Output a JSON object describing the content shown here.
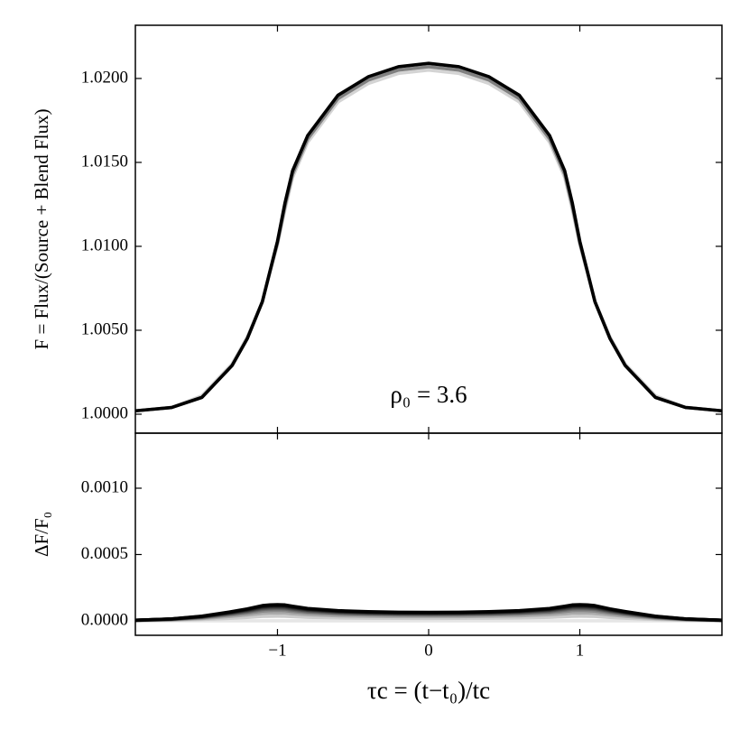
{
  "chart_data": [
    {
      "type": "line",
      "ylabel": "F = Flux/(Source + Blend Flux)",
      "annotation": "ρ₀ = 3.6",
      "x": [
        -1.94,
        -1.7,
        -1.5,
        -1.3,
        -1.2,
        -1.1,
        -1.05,
        -1,
        -0.95,
        -0.9,
        -0.8,
        -0.6,
        -0.4,
        -0.2,
        0,
        0.2,
        0.4,
        0.6,
        0.8,
        0.9,
        0.95,
        1,
        1.05,
        1.1,
        1.2,
        1.3,
        1.5,
        1.7,
        1.94
      ],
      "xlim": [
        -1.94,
        1.94
      ],
      "ylim": [
        0.99887,
        1.02317
      ],
      "xticks": [
        {
          "value": -1,
          "label": "−1"
        },
        0,
        1
      ],
      "yticks": [
        {
          "value": 1,
          "label": "1.0000"
        },
        {
          "value": 1.005,
          "label": "1.0050"
        },
        {
          "value": 1.01,
          "label": "1.0100"
        },
        {
          "value": 1.015,
          "label": "1.0150"
        },
        {
          "value": 1.02,
          "label": "1.0200"
        }
      ],
      "series": [
        {
          "color": "#d4d4d4",
          "values": [
            1.0002,
            1.0004,
            1.0011,
            1.003,
            1.0046,
            1.0067,
            1.0084,
            1.0101,
            1.0122,
            1.0141,
            1.0162,
            1.0186,
            1.0197,
            1.0203,
            1.0205,
            1.0203,
            1.0197,
            1.0186,
            1.0162,
            1.0141,
            1.0122,
            1.0101,
            1.0084,
            1.0067,
            1.0046,
            1.003,
            1.0011,
            1.0004,
            1.0002
          ]
        },
        {
          "color": "#808080",
          "values": [
            1.0002,
            1.0004,
            1.001,
            1.0029,
            1.0045,
            1.0067,
            1.0085,
            1.0102,
            1.0124,
            1.0143,
            1.0164,
            1.0188,
            1.0199,
            1.0205,
            1.0207,
            1.0205,
            1.0199,
            1.0188,
            1.0164,
            1.0143,
            1.0124,
            1.0102,
            1.0085,
            1.0067,
            1.0045,
            1.0029,
            1.001,
            1.0004,
            1.0002
          ]
        },
        {
          "color": "#000000",
          "values": [
            1.0002,
            1.0004,
            1.001,
            1.0029,
            1.0045,
            1.0067,
            1.0085,
            1.0103,
            1.0126,
            1.0145,
            1.0166,
            1.019,
            1.0201,
            1.0207,
            1.0209,
            1.0207,
            1.0201,
            1.019,
            1.0166,
            1.0145,
            1.0126,
            1.0103,
            1.0085,
            1.0067,
            1.0045,
            1.0029,
            1.001,
            1.0004,
            1.0002
          ]
        }
      ]
    },
    {
      "type": "line",
      "ylabel": "ΔF/F₀",
      "xlabel": "τc = (t−t₀)/tc",
      "x": [
        -1.94,
        -1.7,
        -1.5,
        -1.3,
        -1.2,
        -1.1,
        -1.05,
        -1,
        -0.95,
        -0.9,
        -0.8,
        -0.6,
        -0.4,
        -0.2,
        0,
        0.2,
        0.4,
        0.6,
        0.8,
        0.9,
        0.95,
        1,
        1.05,
        1.1,
        1.2,
        1.3,
        1.5,
        1.7,
        1.94
      ],
      "xlim": [
        -1.94,
        1.94
      ],
      "ylim": [
        -0.000109,
        0.001415
      ],
      "xticks": [
        {
          "value": -1,
          "label": "−1"
        },
        0,
        1
      ],
      "yticks": [
        {
          "value": 0,
          "label": "0.0000"
        },
        {
          "value": 0.0005,
          "label": "0.0005"
        },
        {
          "value": 0.001,
          "label": "0.0010"
        }
      ],
      "series": [
        {
          "color": "#e6e6e6",
          "values": [
            0,
            0,
            0,
            0,
            0,
            0,
            0,
            0,
            0,
            0,
            0,
            0,
            0,
            0,
            0,
            0,
            0,
            0,
            0,
            0,
            0,
            0,
            0,
            0,
            0,
            0,
            0,
            0,
            0
          ]
        },
        {
          "color": "#cccccc",
          "values": [
            1.4e-06,
            4.3e-06,
            1e-05,
            2e-05,
            2.6e-05,
            3.3e-05,
            3.44e-05,
            3.5e-05,
            3.44e-05,
            3.16e-05,
            2.67e-05,
            2.21e-05,
            1.98e-05,
            1.87e-05,
            1.84e-05,
            1.87e-05,
            1.98e-05,
            2.21e-05,
            2.67e-05,
            3.16e-05,
            3.44e-05,
            3.5e-05,
            3.44e-05,
            3.3e-05,
            2.6e-05,
            2e-05,
            1e-05,
            4.3e-06,
            1.4e-06
          ]
        },
        {
          "color": "#aaaaaa",
          "values": [
            2.5e-06,
            7.4e-06,
            1.72e-05,
            3.44e-05,
            4.43e-05,
            5.66e-05,
            5.9e-05,
            6e-05,
            5.9e-05,
            5.41e-05,
            4.58e-05,
            3.79e-05,
            3.39e-05,
            3.2e-05,
            3.15e-05,
            3.2e-05,
            3.39e-05,
            3.79e-05,
            4.58e-05,
            5.41e-05,
            5.9e-05,
            6e-05,
            5.9e-05,
            5.66e-05,
            4.43e-05,
            3.44e-05,
            1.72e-05,
            7.4e-06,
            2.5e-06
          ]
        },
        {
          "color": "#888888",
          "values": [
            3.2e-06,
            9.6e-06,
            2.24e-05,
            4.47e-05,
            5.75e-05,
            7.35e-05,
            7.67e-05,
            7.8e-05,
            7.67e-05,
            7.03e-05,
            5.94e-05,
            4.92e-05,
            4.41e-05,
            4.15e-05,
            4.09e-05,
            4.15e-05,
            4.41e-05,
            4.92e-05,
            5.94e-05,
            7.03e-05,
            7.67e-05,
            7.8e-05,
            7.67e-05,
            7.35e-05,
            5.75e-05,
            4.47e-05,
            2.24e-05,
            9.6e-06,
            3.2e-06
          ]
        },
        {
          "color": "#6e6e6e",
          "values": [
            3.7e-06,
            1.11e-05,
            2.58e-05,
            5.17e-05,
            6.64e-05,
            8.49e-05,
            8.86e-05,
            9e-05,
            8.86e-05,
            8.12e-05,
            6.86e-05,
            5.68e-05,
            5.09e-05,
            4.8e-05,
            4.72e-05,
            4.8e-05,
            5.09e-05,
            5.68e-05,
            6.86e-05,
            8.12e-05,
            8.86e-05,
            9e-05,
            8.86e-05,
            8.49e-05,
            6.64e-05,
            5.17e-05,
            2.58e-05,
            1.11e-05,
            3.7e-06
          ]
        },
        {
          "color": "#555555",
          "values": [
            4e-06,
            1.2e-05,
            2.81e-05,
            5.62e-05,
            7.23e-05,
            9.23e-05,
            9.64e-05,
            9.8e-05,
            9.64e-05,
            8.83e-05,
            7.47e-05,
            6.18e-05,
            5.54e-05,
            5.22e-05,
            5.14e-05,
            5.22e-05,
            5.54e-05,
            6.18e-05,
            7.47e-05,
            8.83e-05,
            9.64e-05,
            9.8e-05,
            9.64e-05,
            9.23e-05,
            7.23e-05,
            5.62e-05,
            2.81e-05,
            1.2e-05,
            4e-06
          ]
        },
        {
          "color": "#404040",
          "values": [
            4.3e-06,
            1.29e-05,
            3.01e-05,
            6.03e-05,
            7.75e-05,
            9.9e-05,
            0.0001033,
            0.000105,
            0.0001033,
            9.47e-05,
            8.01e-05,
            6.63e-05,
            5.94e-05,
            5.6e-05,
            5.51e-05,
            5.6e-05,
            5.94e-05,
            6.63e-05,
            8.01e-05,
            9.47e-05,
            0.0001033,
            0.000105,
            0.0001033,
            9.9e-05,
            7.75e-05,
            6.03e-05,
            3.01e-05,
            1.29e-05,
            4.3e-06
          ]
        },
        {
          "color": "#2a2a2a",
          "values": [
            4.6e-06,
            1.37e-05,
            3.19e-05,
            6.37e-05,
            8.19e-05,
            0.0001047,
            0.0001092,
            0.000111,
            0.0001092,
            0.0001001,
            8.46e-05,
            7.01e-05,
            6.28e-05,
            5.92e-05,
            5.82e-05,
            5.92e-05,
            6.28e-05,
            7.01e-05,
            8.46e-05,
            0.0001001,
            0.0001092,
            0.000111,
            0.0001092,
            0.0001047,
            8.19e-05,
            6.37e-05,
            3.19e-05,
            1.37e-05,
            4.6e-06
          ]
        },
        {
          "color": "#151515",
          "values": [
            4.8e-06,
            1.43e-05,
            3.33e-05,
            6.66e-05,
            8.56e-05,
            0.0001094,
            0.0001141,
            0.000116,
            0.0001141,
            0.0001046,
            8.84e-05,
            7.32e-05,
            6.56e-05,
            6.18e-05,
            6.09e-05,
            6.18e-05,
            6.56e-05,
            7.32e-05,
            8.84e-05,
            0.0001046,
            0.0001141,
            0.000116,
            0.0001141,
            0.0001094,
            8.56e-05,
            6.66e-05,
            3.33e-05,
            1.43e-05,
            4.8e-06
          ]
        },
        {
          "color": "#000000",
          "values": [
            5e-06,
            1.5e-05,
            3.5e-05,
            7e-05,
            9e-05,
            0.000115,
            0.00012,
            0.000122,
            0.00012,
            0.00011,
            9.3e-05,
            7.7e-05,
            6.9e-05,
            6.5e-05,
            6.4e-05,
            6.5e-05,
            6.9e-05,
            7.7e-05,
            9.3e-05,
            0.00011,
            0.00012,
            0.000122,
            0.00012,
            0.000115,
            9e-05,
            7e-05,
            3.5e-05,
            1.5e-05,
            5e-06
          ]
        }
      ]
    }
  ]
}
